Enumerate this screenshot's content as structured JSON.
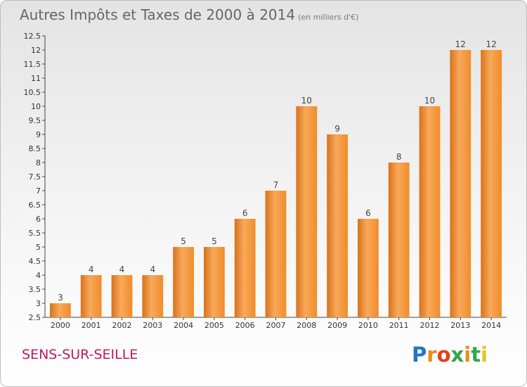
{
  "header": {
    "title": "Autres Impôts et Taxes de 2000 à 2014",
    "subtitle": "(en milliers d'€)"
  },
  "footer": {
    "commune": "SENS-SUR-SEILLE",
    "logo_text": "Proxiti",
    "logo_colors": [
      "#1f77c8",
      "#f08a1c",
      "#e83e1c",
      "#2da84a",
      "#f08a1c",
      "#2da84a",
      "#e8c21c"
    ]
  },
  "chart_data": {
    "type": "bar",
    "title": "Autres Impôts et Taxes de 2000 à 2014",
    "subtitle": "(en milliers d'€)",
    "xlabel": "",
    "ylabel": "",
    "categories": [
      "2000",
      "2001",
      "2002",
      "2003",
      "2004",
      "2005",
      "2006",
      "2007",
      "2008",
      "2009",
      "2010",
      "2011",
      "2012",
      "2013",
      "2014"
    ],
    "values": [
      3,
      4,
      4,
      4,
      5,
      5,
      6,
      7,
      10,
      9,
      6,
      8,
      10,
      12,
      12
    ],
    "data_labels": [
      "3",
      "4",
      "4",
      "4",
      "5",
      "5",
      "6",
      "7",
      "10",
      "9",
      "6",
      "8",
      "10",
      "12",
      "12"
    ],
    "ylim": [
      2.5,
      12.5
    ],
    "yticks": [
      2.5,
      3,
      3.5,
      4,
      4.5,
      5,
      5.5,
      6,
      6.5,
      7,
      7.5,
      8,
      8.5,
      9,
      9.5,
      10,
      10.5,
      11,
      11.5,
      12,
      12.5
    ],
    "ytick_labels": [
      "2.5",
      "3",
      "3.5",
      "4",
      "4.5",
      "5",
      "5.5",
      "6",
      "6.5",
      "7",
      "7.5",
      "8",
      "8.5",
      "9",
      "9.5",
      "10",
      "10.5",
      "11",
      "11.5",
      "12",
      "12.5"
    ],
    "grid": false,
    "bar_color": "#f08c2a",
    "bar_color_light": "#f8a95a",
    "bar_color_dark": "#d8721a"
  }
}
